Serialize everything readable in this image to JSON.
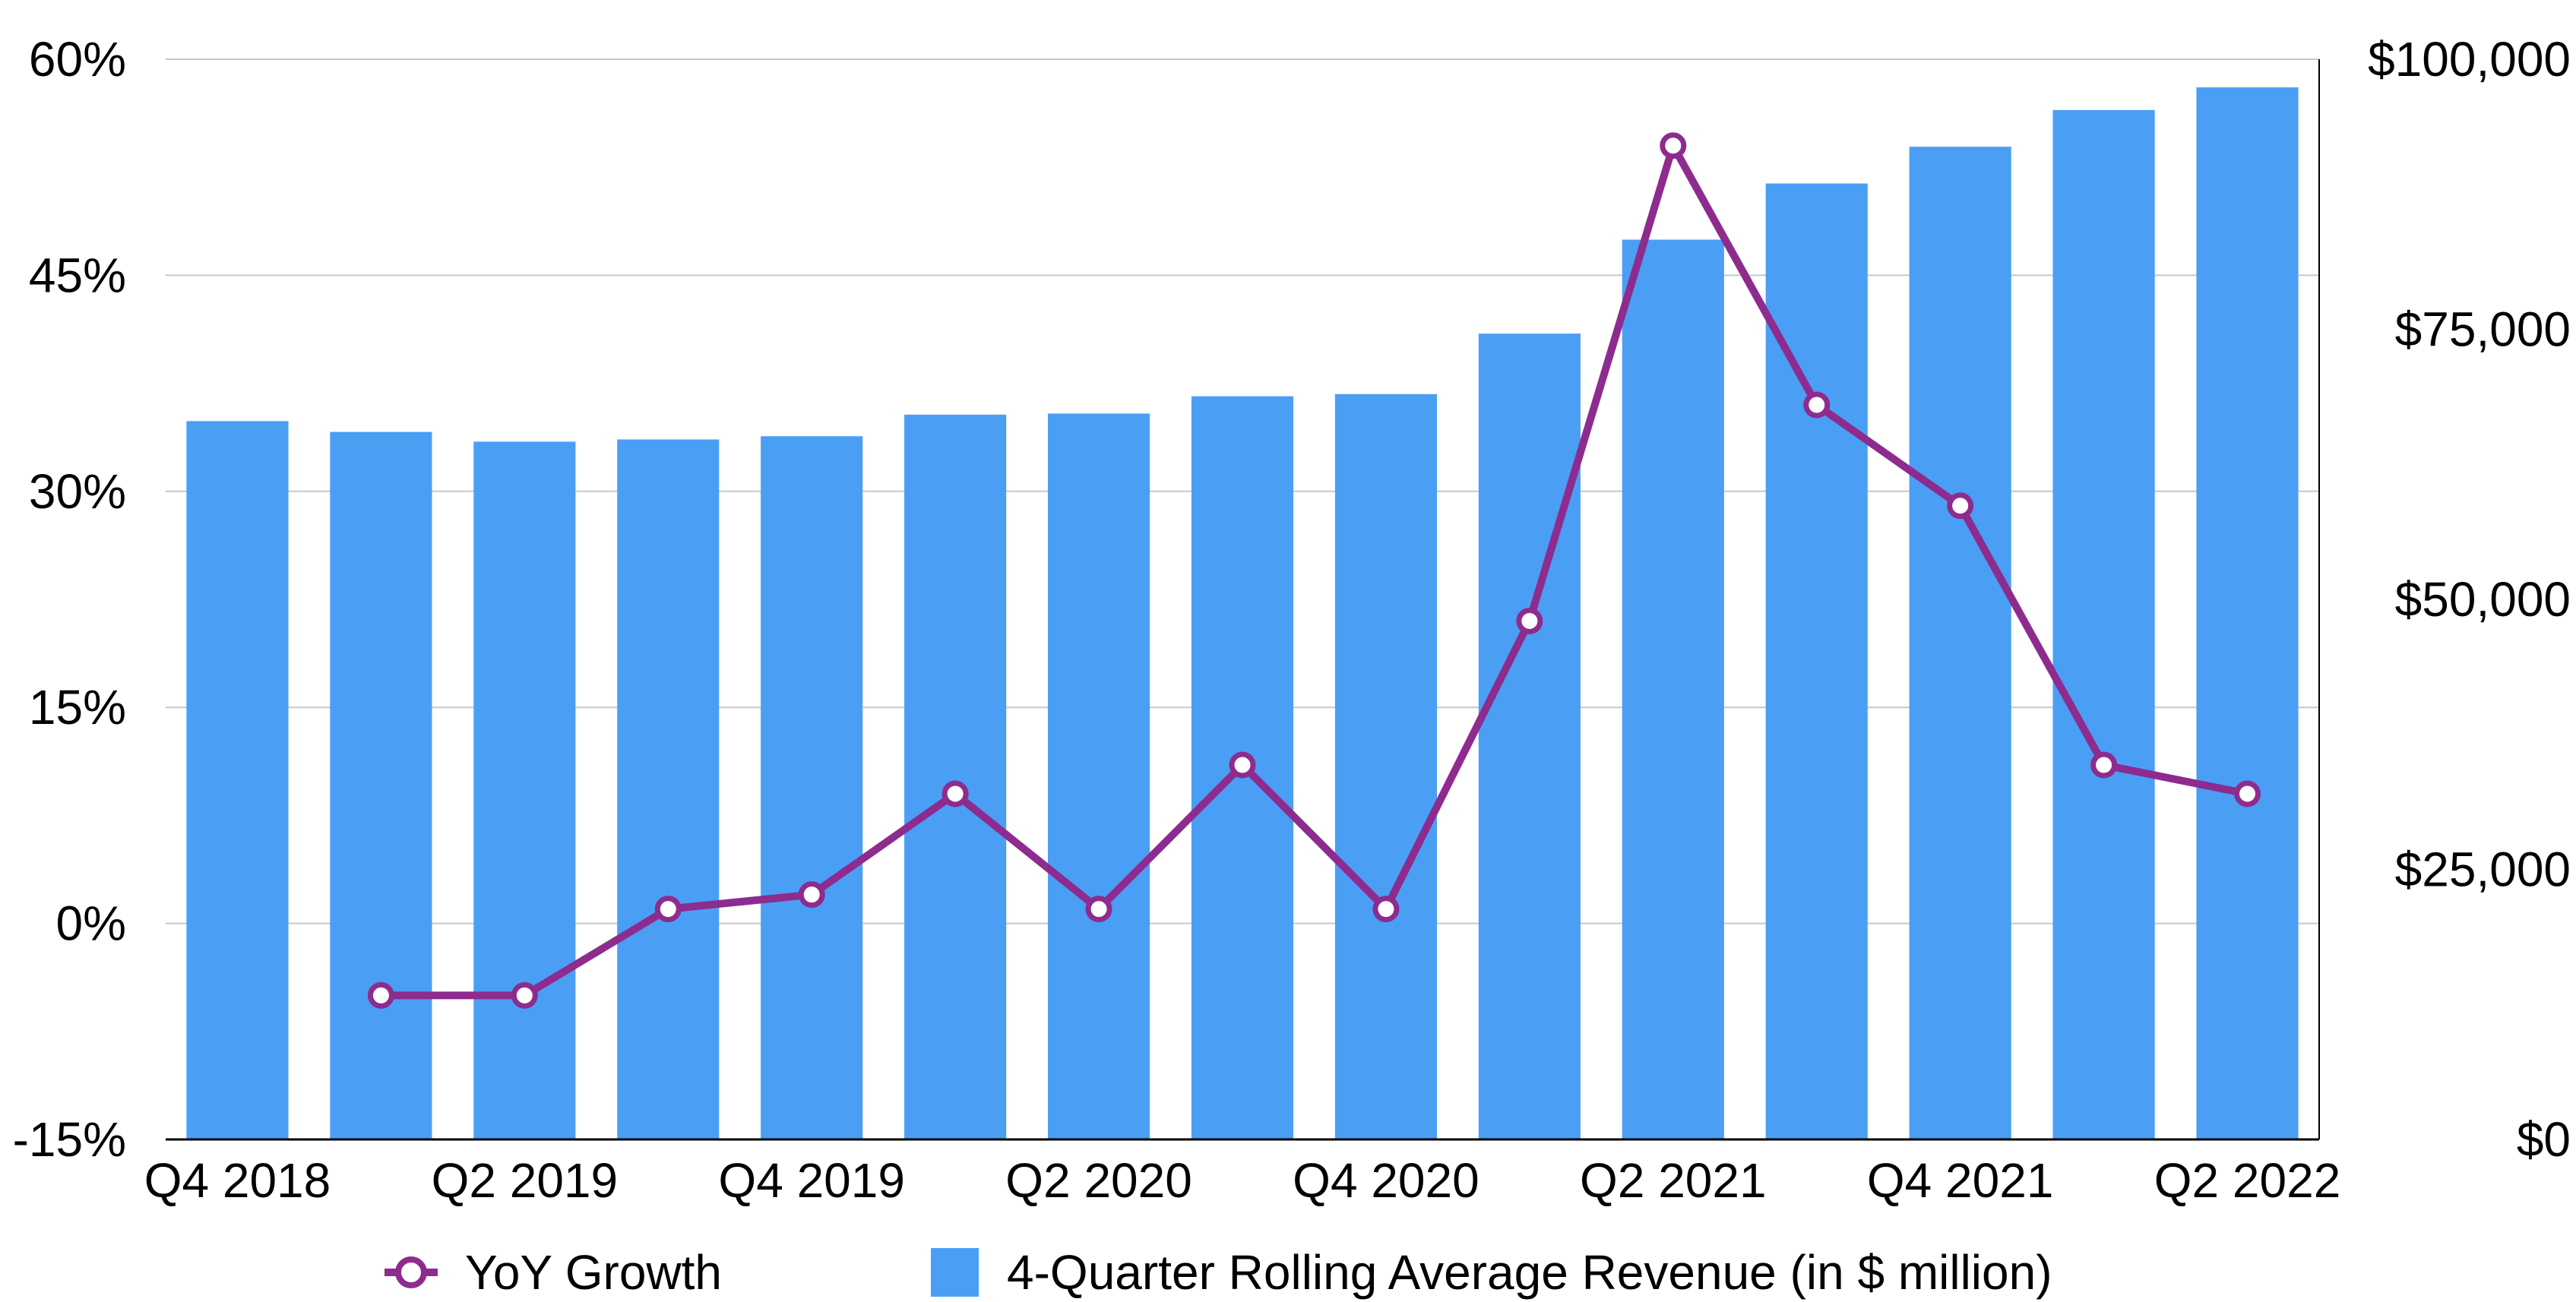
{
  "chart_data": {
    "type": "bar",
    "categories": [
      "Q4 2018",
      "Q1 2019",
      "Q2 2019",
      "Q3 2019",
      "Q4 2019",
      "Q1 2020",
      "Q2 2020",
      "Q3 2020",
      "Q4 2020",
      "Q1 2021",
      "Q2 2021",
      "Q3 2021",
      "Q4 2021",
      "Q1 2022",
      "Q2 2022"
    ],
    "x_tick_labels": [
      "Q4 2018",
      "Q2 2019",
      "Q4 2019",
      "Q2 2020",
      "Q4 2020",
      "Q2 2021",
      "Q4 2021",
      "Q2 2022"
    ],
    "series": [
      {
        "name": "4-Quarter Rolling Average Revenue (in $ million)",
        "type": "bar",
        "axis": "right",
        "color": "#4A9FF5",
        "values": [
          66500,
          65500,
          64600,
          64800,
          65100,
          67100,
          67200,
          68800,
          69000,
          74600,
          83300,
          88500,
          91900,
          95300,
          97400
        ]
      },
      {
        "name": "YoY Growth",
        "type": "line",
        "axis": "left",
        "color": "#8E2B8E",
        "marker": "hollow-circle",
        "values": [
          null,
          -5,
          -5,
          1,
          2,
          9,
          1,
          11,
          1,
          21,
          54,
          36,
          29,
          11,
          9
        ]
      }
    ],
    "y_left": {
      "min": -15,
      "max": 60,
      "ticks": [
        -15,
        0,
        15,
        30,
        45,
        60
      ],
      "tick_labels": [
        "-15%",
        "0%",
        "15%",
        "30%",
        "45%",
        "60%"
      ]
    },
    "y_right": {
      "min": 0,
      "max": 100000,
      "ticks": [
        0,
        25000,
        50000,
        75000,
        100000
      ],
      "tick_labels": [
        "$0",
        "$25,000",
        "$50,000",
        "$75,000",
        "$100,000"
      ]
    },
    "grid": true,
    "legend": {
      "position": "bottom",
      "entries": [
        "YoY Growth",
        "4-Quarter Rolling Average Revenue (in $ million)"
      ]
    },
    "title": "",
    "xlabel": "",
    "ylabel": ""
  }
}
